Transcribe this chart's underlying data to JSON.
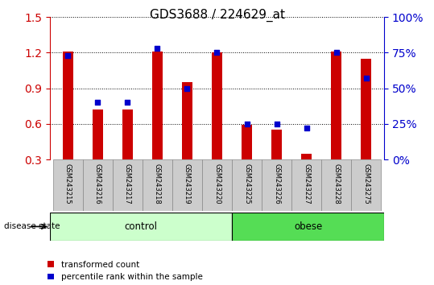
{
  "title": "GDS3688 / 224629_at",
  "samples": [
    "GSM243215",
    "GSM243216",
    "GSM243217",
    "GSM243218",
    "GSM243219",
    "GSM243220",
    "GSM243225",
    "GSM243226",
    "GSM243227",
    "GSM243228",
    "GSM243275"
  ],
  "red_values": [
    1.21,
    0.72,
    0.72,
    1.21,
    0.95,
    1.2,
    0.59,
    0.55,
    0.35,
    1.21,
    1.15
  ],
  "blue_pct": [
    73,
    40,
    40,
    78,
    50,
    75,
    25,
    25,
    22,
    75,
    57
  ],
  "groups": [
    {
      "label": "control",
      "start": 0,
      "end": 6,
      "color": "#ccffcc"
    },
    {
      "label": "obese",
      "start": 6,
      "end": 11,
      "color": "#55dd55"
    }
  ],
  "ylim_left": [
    0.3,
    1.5
  ],
  "ylim_right": [
    0,
    100
  ],
  "yticks_left": [
    0.3,
    0.6,
    0.9,
    1.2,
    1.5
  ],
  "yticks_right": [
    0,
    25,
    50,
    75,
    100
  ],
  "red_color": "#CC0000",
  "blue_color": "#0000CC",
  "left_tick_color": "#CC0000",
  "right_tick_color": "#0000CC",
  "title_fontsize": 11,
  "legend_labels": [
    "transformed count",
    "percentile rank within the sample"
  ],
  "disease_state_label": "disease state",
  "tick_area_color": "#cccccc"
}
